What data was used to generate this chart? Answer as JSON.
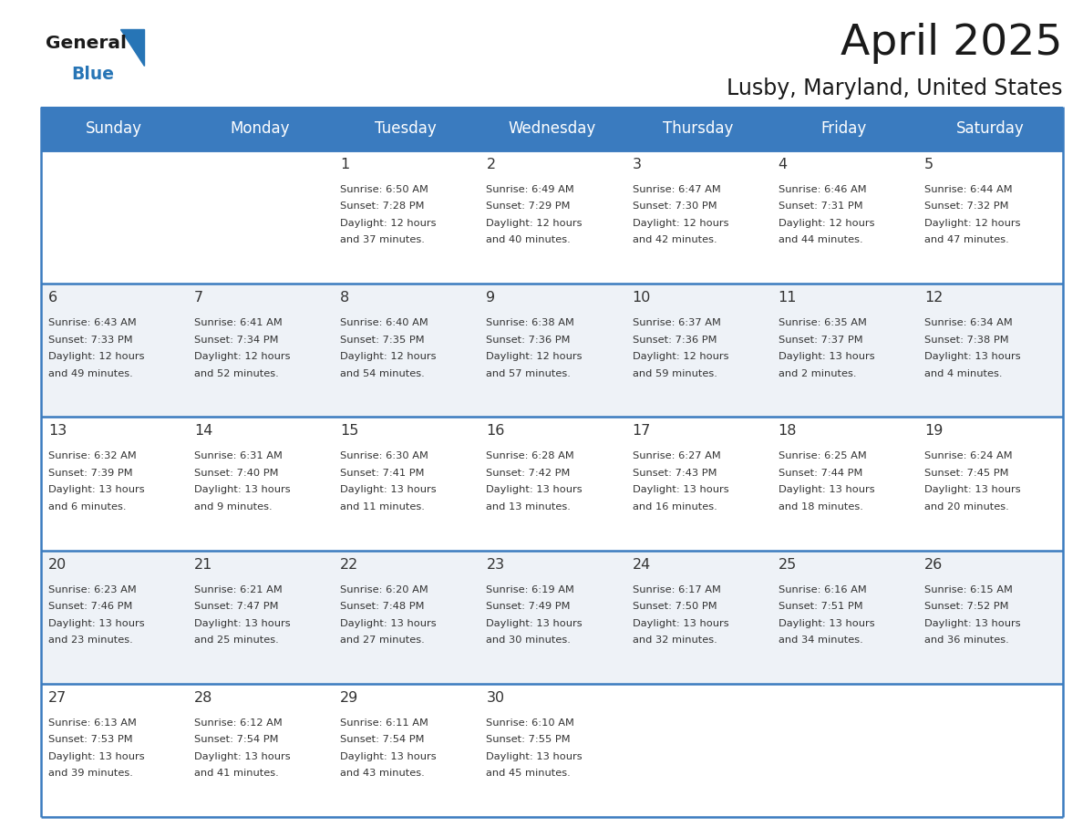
{
  "title": "April 2025",
  "subtitle": "Lusby, Maryland, United States",
  "header_color": "#3a7bbf",
  "header_text_color": "#ffffff",
  "border_color": "#3a7bbf",
  "day_names": [
    "Sunday",
    "Monday",
    "Tuesday",
    "Wednesday",
    "Thursday",
    "Friday",
    "Saturday"
  ],
  "weeks": [
    [
      {
        "day": "",
        "sunrise": "",
        "sunset": "",
        "daylight": ""
      },
      {
        "day": "",
        "sunrise": "",
        "sunset": "",
        "daylight": ""
      },
      {
        "day": "1",
        "sunrise": "Sunrise: 6:50 AM",
        "sunset": "Sunset: 7:28 PM",
        "daylight": "Daylight: 12 hours\nand 37 minutes."
      },
      {
        "day": "2",
        "sunrise": "Sunrise: 6:49 AM",
        "sunset": "Sunset: 7:29 PM",
        "daylight": "Daylight: 12 hours\nand 40 minutes."
      },
      {
        "day": "3",
        "sunrise": "Sunrise: 6:47 AM",
        "sunset": "Sunset: 7:30 PM",
        "daylight": "Daylight: 12 hours\nand 42 minutes."
      },
      {
        "day": "4",
        "sunrise": "Sunrise: 6:46 AM",
        "sunset": "Sunset: 7:31 PM",
        "daylight": "Daylight: 12 hours\nand 44 minutes."
      },
      {
        "day": "5",
        "sunrise": "Sunrise: 6:44 AM",
        "sunset": "Sunset: 7:32 PM",
        "daylight": "Daylight: 12 hours\nand 47 minutes."
      }
    ],
    [
      {
        "day": "6",
        "sunrise": "Sunrise: 6:43 AM",
        "sunset": "Sunset: 7:33 PM",
        "daylight": "Daylight: 12 hours\nand 49 minutes."
      },
      {
        "day": "7",
        "sunrise": "Sunrise: 6:41 AM",
        "sunset": "Sunset: 7:34 PM",
        "daylight": "Daylight: 12 hours\nand 52 minutes."
      },
      {
        "day": "8",
        "sunrise": "Sunrise: 6:40 AM",
        "sunset": "Sunset: 7:35 PM",
        "daylight": "Daylight: 12 hours\nand 54 minutes."
      },
      {
        "day": "9",
        "sunrise": "Sunrise: 6:38 AM",
        "sunset": "Sunset: 7:36 PM",
        "daylight": "Daylight: 12 hours\nand 57 minutes."
      },
      {
        "day": "10",
        "sunrise": "Sunrise: 6:37 AM",
        "sunset": "Sunset: 7:36 PM",
        "daylight": "Daylight: 12 hours\nand 59 minutes."
      },
      {
        "day": "11",
        "sunrise": "Sunrise: 6:35 AM",
        "sunset": "Sunset: 7:37 PM",
        "daylight": "Daylight: 13 hours\nand 2 minutes."
      },
      {
        "day": "12",
        "sunrise": "Sunrise: 6:34 AM",
        "sunset": "Sunset: 7:38 PM",
        "daylight": "Daylight: 13 hours\nand 4 minutes."
      }
    ],
    [
      {
        "day": "13",
        "sunrise": "Sunrise: 6:32 AM",
        "sunset": "Sunset: 7:39 PM",
        "daylight": "Daylight: 13 hours\nand 6 minutes."
      },
      {
        "day": "14",
        "sunrise": "Sunrise: 6:31 AM",
        "sunset": "Sunset: 7:40 PM",
        "daylight": "Daylight: 13 hours\nand 9 minutes."
      },
      {
        "day": "15",
        "sunrise": "Sunrise: 6:30 AM",
        "sunset": "Sunset: 7:41 PM",
        "daylight": "Daylight: 13 hours\nand 11 minutes."
      },
      {
        "day": "16",
        "sunrise": "Sunrise: 6:28 AM",
        "sunset": "Sunset: 7:42 PM",
        "daylight": "Daylight: 13 hours\nand 13 minutes."
      },
      {
        "day": "17",
        "sunrise": "Sunrise: 6:27 AM",
        "sunset": "Sunset: 7:43 PM",
        "daylight": "Daylight: 13 hours\nand 16 minutes."
      },
      {
        "day": "18",
        "sunrise": "Sunrise: 6:25 AM",
        "sunset": "Sunset: 7:44 PM",
        "daylight": "Daylight: 13 hours\nand 18 minutes."
      },
      {
        "day": "19",
        "sunrise": "Sunrise: 6:24 AM",
        "sunset": "Sunset: 7:45 PM",
        "daylight": "Daylight: 13 hours\nand 20 minutes."
      }
    ],
    [
      {
        "day": "20",
        "sunrise": "Sunrise: 6:23 AM",
        "sunset": "Sunset: 7:46 PM",
        "daylight": "Daylight: 13 hours\nand 23 minutes."
      },
      {
        "day": "21",
        "sunrise": "Sunrise: 6:21 AM",
        "sunset": "Sunset: 7:47 PM",
        "daylight": "Daylight: 13 hours\nand 25 minutes."
      },
      {
        "day": "22",
        "sunrise": "Sunrise: 6:20 AM",
        "sunset": "Sunset: 7:48 PM",
        "daylight": "Daylight: 13 hours\nand 27 minutes."
      },
      {
        "day": "23",
        "sunrise": "Sunrise: 6:19 AM",
        "sunset": "Sunset: 7:49 PM",
        "daylight": "Daylight: 13 hours\nand 30 minutes."
      },
      {
        "day": "24",
        "sunrise": "Sunrise: 6:17 AM",
        "sunset": "Sunset: 7:50 PM",
        "daylight": "Daylight: 13 hours\nand 32 minutes."
      },
      {
        "day": "25",
        "sunrise": "Sunrise: 6:16 AM",
        "sunset": "Sunset: 7:51 PM",
        "daylight": "Daylight: 13 hours\nand 34 minutes."
      },
      {
        "day": "26",
        "sunrise": "Sunrise: 6:15 AM",
        "sunset": "Sunset: 7:52 PM",
        "daylight": "Daylight: 13 hours\nand 36 minutes."
      }
    ],
    [
      {
        "day": "27",
        "sunrise": "Sunrise: 6:13 AM",
        "sunset": "Sunset: 7:53 PM",
        "daylight": "Daylight: 13 hours\nand 39 minutes."
      },
      {
        "day": "28",
        "sunrise": "Sunrise: 6:12 AM",
        "sunset": "Sunset: 7:54 PM",
        "daylight": "Daylight: 13 hours\nand 41 minutes."
      },
      {
        "day": "29",
        "sunrise": "Sunrise: 6:11 AM",
        "sunset": "Sunset: 7:54 PM",
        "daylight": "Daylight: 13 hours\nand 43 minutes."
      },
      {
        "day": "30",
        "sunrise": "Sunrise: 6:10 AM",
        "sunset": "Sunset: 7:55 PM",
        "daylight": "Daylight: 13 hours\nand 45 minutes."
      },
      {
        "day": "",
        "sunrise": "",
        "sunset": "",
        "daylight": ""
      },
      {
        "day": "",
        "sunrise": "",
        "sunset": "",
        "daylight": ""
      },
      {
        "day": "",
        "sunrise": "",
        "sunset": "",
        "daylight": ""
      }
    ]
  ],
  "logo_general_color": "#1a1a1a",
  "logo_blue_color": "#2775b6",
  "logo_triangle_color": "#2775b6",
  "title_color": "#1a1a1a",
  "text_color": "#333333",
  "cell_bg_even": "#ffffff",
  "cell_bg_odd": "#eef2f7"
}
